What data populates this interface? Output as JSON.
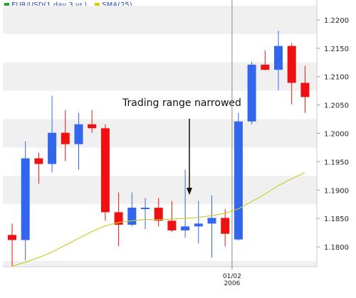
{
  "chart_data": {
    "type": "candlestick",
    "legend": [
      {
        "label": "EUR/USD(1 day  3 yr.)",
        "color": "#22aa22"
      },
      {
        "label": "SMA(25)",
        "color": "#d4d400"
      }
    ],
    "annotation": "Trading range narrowed",
    "y_ticks": [
      "1.2200",
      "1.2150",
      "1.2100",
      "1.2050",
      "1.2000",
      "1.1950",
      "1.1900",
      "1.1850",
      "1.1800"
    ],
    "ylim": [
      1.1765,
      1.2235
    ],
    "x_tick": {
      "label_line1": "01/02",
      "label_line2": "2006",
      "index": 17
    },
    "colors": {
      "up": "#3366ee",
      "down": "#ee1111",
      "sma": "#cccc33",
      "band": "#f0f0f0",
      "grid_line": "#ffffff"
    },
    "candles": [
      {
        "o": 1.1821,
        "h": 1.1841,
        "l": 1.1766,
        "c": 1.1812
      },
      {
        "o": 1.1812,
        "h": 1.1986,
        "l": 1.1776,
        "c": 1.1956
      },
      {
        "o": 1.1956,
        "h": 1.1966,
        "l": 1.1911,
        "c": 1.1946
      },
      {
        "o": 1.1946,
        "h": 1.2066,
        "l": 1.1931,
        "c": 1.2001
      },
      {
        "o": 1.2001,
        "h": 1.2041,
        "l": 1.1951,
        "c": 1.1981
      },
      {
        "o": 1.1981,
        "h": 1.2036,
        "l": 1.1936,
        "c": 1.2016
      },
      {
        "o": 1.2016,
        "h": 1.2041,
        "l": 1.2001,
        "c": 1.2009
      },
      {
        "o": 1.2009,
        "h": 1.2016,
        "l": 1.1846,
        "c": 1.1861
      },
      {
        "o": 1.1861,
        "h": 1.1896,
        "l": 1.1801,
        "c": 1.1839
      },
      {
        "o": 1.1839,
        "h": 1.1896,
        "l": 1.1836,
        "c": 1.1869
      },
      {
        "o": 1.1869,
        "h": 1.1886,
        "l": 1.1831,
        "c": 1.1869
      },
      {
        "o": 1.1869,
        "h": 1.1886,
        "l": 1.1836,
        "c": 1.1846
      },
      {
        "o": 1.1846,
        "h": 1.1881,
        "l": 1.1826,
        "c": 1.1829
      },
      {
        "o": 1.1829,
        "h": 1.1936,
        "l": 1.1816,
        "c": 1.1836
      },
      {
        "o": 1.1836,
        "h": 1.1881,
        "l": 1.1806,
        "c": 1.1841
      },
      {
        "o": 1.1841,
        "h": 1.1891,
        "l": 1.1781,
        "c": 1.1851
      },
      {
        "o": 1.1851,
        "h": 1.1866,
        "l": 1.1801,
        "c": 1.1823
      },
      {
        "o": 1.1813,
        "h": 1.2036,
        "l": 1.1811,
        "c": 1.2021
      },
      {
        "o": 1.2021,
        "h": 1.2126,
        "l": 1.2016,
        "c": 1.2121
      },
      {
        "o": 1.2121,
        "h": 1.2146,
        "l": 1.2111,
        "c": 1.2112
      },
      {
        "o": 1.2112,
        "h": 1.2181,
        "l": 1.2076,
        "c": 1.2154
      },
      {
        "o": 1.2154,
        "h": 1.2159,
        "l": 1.2051,
        "c": 1.2089
      },
      {
        "o": 1.2089,
        "h": 1.2119,
        "l": 1.2036,
        "c": 1.2064
      }
    ],
    "sma": [
      1.1766,
      1.1773,
      1.1781,
      1.1791,
      1.1803,
      1.1815,
      1.1827,
      1.1837,
      1.1843,
      1.1846,
      1.1848,
      1.1848,
      1.1849,
      1.185,
      1.1852,
      1.1855,
      1.1859,
      1.1867,
      1.188,
      1.1893,
      1.1908,
      1.192,
      1.1931
    ]
  }
}
